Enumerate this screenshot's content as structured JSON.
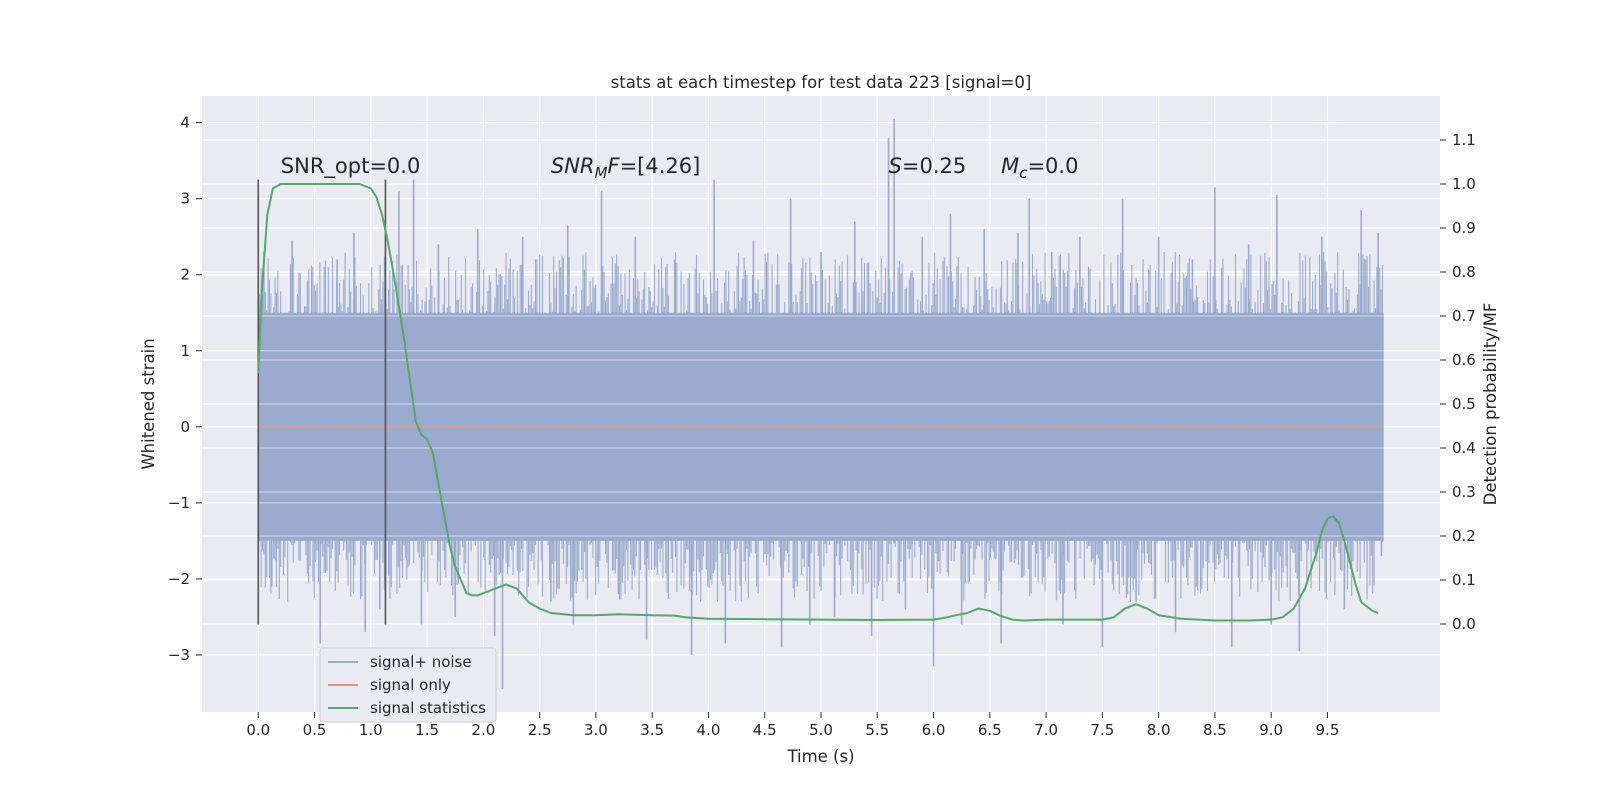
{
  "chart_data": {
    "type": "line",
    "title": "stats at each timestep for test data 223 [signal=0]",
    "xlabel": "Time (s)",
    "ylabel_left": "Whitened strain",
    "ylabel_right": "Detection probability/MF",
    "xlim": [
      -0.5,
      10.5
    ],
    "ylim_left": [
      -3.75,
      4.35
    ],
    "ylim_right": [
      -0.2,
      1.2
    ],
    "x_ticks": [
      "0.0",
      "0.5",
      "1.0",
      "1.5",
      "2.0",
      "2.5",
      "3.0",
      "3.5",
      "4.0",
      "4.5",
      "5.0",
      "5.5",
      "6.0",
      "6.5",
      "7.0",
      "7.5",
      "8.0",
      "8.5",
      "9.0",
      "9.5"
    ],
    "y_left_ticks": [
      "4",
      "3",
      "2",
      "1",
      "0",
      "−1",
      "−2",
      "−3"
    ],
    "y_right_ticks": [
      "1.1",
      "1.0",
      "0.9",
      "0.8",
      "0.7",
      "0.6",
      "0.5",
      "0.4",
      "0.3",
      "0.2",
      "0.1",
      "0.0"
    ],
    "grid": true,
    "legend_position": "lower-left",
    "colors": {
      "background": "#eaeaf2",
      "grid": "#ffffff",
      "noise": "#9aabcf",
      "signal_only": "#dd9a80",
      "statistics": "#55a868",
      "window_line": "#555555"
    },
    "annotations": [
      {
        "label": "SNR_opt=0.0",
        "x": 0.2,
        "y": 3.3
      },
      {
        "label": "SNR_MF=[4.26]",
        "x": 2.6,
        "y": 3.3
      },
      {
        "label": "S=0.25",
        "x": 5.6,
        "y": 3.3
      },
      {
        "label": "M_c=0.0",
        "x": 6.6,
        "y": 3.3
      }
    ],
    "window_markers": [
      0.0,
      1.13
    ],
    "series": [
      {
        "name": "signal+ noise",
        "axis": "left",
        "x_range": [
          0.0,
          10.0
        ],
        "core_range": [
          -1.5,
          1.5
        ],
        "spikes": [
          [
            0.05,
            2.3
          ],
          [
            0.12,
            -2.1
          ],
          [
            0.3,
            2.45
          ],
          [
            0.55,
            -2.85
          ],
          [
            0.7,
            2.2
          ],
          [
            0.85,
            2.55
          ],
          [
            0.95,
            -2.7
          ],
          [
            1.08,
            -2.4
          ],
          [
            1.25,
            3.1
          ],
          [
            1.38,
            3.25
          ],
          [
            1.45,
            -2.6
          ],
          [
            1.6,
            2.4
          ],
          [
            1.75,
            -2.5
          ],
          [
            1.95,
            2.6
          ],
          [
            2.1,
            -2.75
          ],
          [
            2.17,
            -3.45
          ],
          [
            2.35,
            2.5
          ],
          [
            2.6,
            -2.3
          ],
          [
            2.75,
            2.65
          ],
          [
            2.8,
            -2.6
          ],
          [
            3.05,
            3.1
          ],
          [
            3.2,
            -2.2
          ],
          [
            3.35,
            2.5
          ],
          [
            3.45,
            -2.8
          ],
          [
            3.7,
            2.2
          ],
          [
            3.85,
            -3.0
          ],
          [
            4.05,
            3.25
          ],
          [
            4.15,
            -2.85
          ],
          [
            4.4,
            2.45
          ],
          [
            4.65,
            -2.9
          ],
          [
            4.73,
            3.0
          ],
          [
            4.9,
            -2.6
          ],
          [
            5.0,
            2.3
          ],
          [
            5.12,
            -2.5
          ],
          [
            5.3,
            2.7
          ],
          [
            5.45,
            -2.75
          ],
          [
            5.6,
            3.8
          ],
          [
            5.65,
            4.05
          ],
          [
            5.75,
            -2.4
          ],
          [
            5.9,
            2.5
          ],
          [
            6.0,
            -3.15
          ],
          [
            6.15,
            2.8
          ],
          [
            6.25,
            -2.6
          ],
          [
            6.45,
            2.6
          ],
          [
            6.6,
            -2.85
          ],
          [
            6.75,
            2.55
          ],
          [
            6.85,
            3.0
          ],
          [
            7.05,
            2.3
          ],
          [
            7.15,
            -2.6
          ],
          [
            7.3,
            2.5
          ],
          [
            7.5,
            -2.9
          ],
          [
            7.68,
            3.0
          ],
          [
            7.8,
            -2.3
          ],
          [
            8.0,
            2.5
          ],
          [
            8.15,
            -2.7
          ],
          [
            8.3,
            2.2
          ],
          [
            8.5,
            3.15
          ],
          [
            8.65,
            -2.9
          ],
          [
            8.8,
            2.4
          ],
          [
            9.0,
            -2.6
          ],
          [
            9.05,
            3.05
          ],
          [
            9.25,
            -2.95
          ],
          [
            9.45,
            2.5
          ],
          [
            9.65,
            -2.4
          ],
          [
            9.8,
            2.85
          ],
          [
            9.95,
            2.55
          ],
          [
            9.98,
            -1.7
          ]
        ]
      },
      {
        "name": "signal only",
        "axis": "left",
        "x": [
          0.0,
          10.0
        ],
        "y": [
          0.0,
          0.0
        ]
      },
      {
        "name": "signal statistics",
        "axis": "right",
        "x": [
          0.0,
          0.03,
          0.08,
          0.13,
          0.2,
          0.3,
          0.45,
          0.6,
          0.75,
          0.9,
          1.0,
          1.05,
          1.1,
          1.15,
          1.2,
          1.25,
          1.3,
          1.35,
          1.4,
          1.45,
          1.5,
          1.55,
          1.6,
          1.65,
          1.7,
          1.75,
          1.8,
          1.85,
          1.9,
          1.95,
          2.0,
          2.1,
          2.2,
          2.3,
          2.4,
          2.5,
          2.6,
          2.8,
          3.0,
          3.2,
          3.5,
          3.7,
          3.8,
          4.0,
          4.5,
          5.0,
          5.5,
          6.0,
          6.1,
          6.2,
          6.3,
          6.4,
          6.5,
          6.6,
          6.7,
          6.8,
          7.0,
          7.2,
          7.5,
          7.6,
          7.7,
          7.8,
          7.9,
          8.0,
          8.2,
          8.5,
          8.8,
          9.0,
          9.1,
          9.2,
          9.3,
          9.4,
          9.45,
          9.5,
          9.55,
          9.6,
          9.65,
          9.7,
          9.75,
          9.8,
          9.85,
          9.9,
          9.95
        ],
        "y": [
          0.57,
          0.75,
          0.93,
          0.99,
          1.0,
          1.0,
          1.0,
          1.0,
          1.0,
          1.0,
          0.99,
          0.97,
          0.93,
          0.87,
          0.8,
          0.72,
          0.64,
          0.55,
          0.46,
          0.43,
          0.42,
          0.39,
          0.32,
          0.25,
          0.18,
          0.13,
          0.1,
          0.07,
          0.065,
          0.065,
          0.07,
          0.08,
          0.09,
          0.08,
          0.05,
          0.035,
          0.025,
          0.02,
          0.02,
          0.022,
          0.02,
          0.019,
          0.015,
          0.012,
          0.011,
          0.01,
          0.009,
          0.01,
          0.014,
          0.02,
          0.025,
          0.035,
          0.03,
          0.018,
          0.01,
          0.008,
          0.01,
          0.01,
          0.01,
          0.015,
          0.035,
          0.045,
          0.035,
          0.02,
          0.012,
          0.008,
          0.008,
          0.01,
          0.015,
          0.035,
          0.08,
          0.16,
          0.21,
          0.24,
          0.245,
          0.23,
          0.19,
          0.14,
          0.09,
          0.05,
          0.04,
          0.03,
          0.025
        ]
      }
    ]
  }
}
